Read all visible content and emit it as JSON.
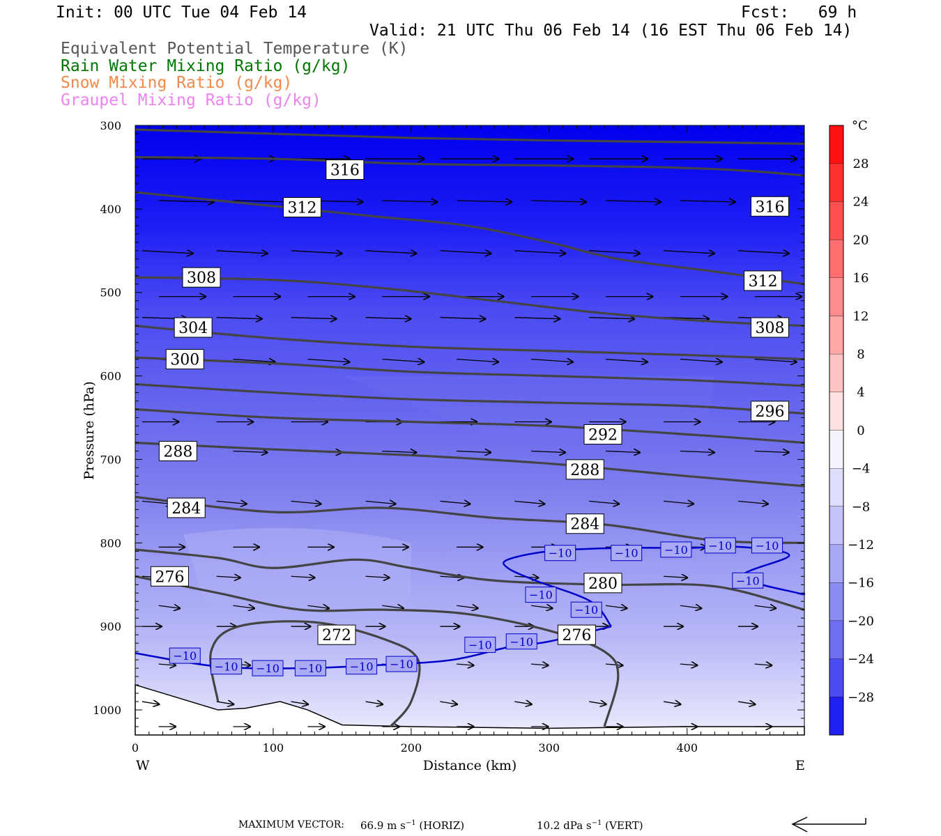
{
  "header": {
    "init": "Init: 00 UTC Tue 04 Feb 14",
    "fcst": "Fcst:   69 h",
    "valid": "Valid: 21 UTC Thu 06 Feb 14 (16 EST Thu 06 Feb 14)",
    "fields": [
      {
        "label": "Equivalent Potential Temperature (K)",
        "color": "#555555"
      },
      {
        "label": "Rain Water Mixing Ratio (g/kg)",
        "color": "#007700"
      },
      {
        "label": "Snow Mixing Ratio (g/kg)",
        "color": "#f08a4b"
      },
      {
        "label": "Graupel Mixing Ratio (g/kg)",
        "color": "#ee82ee"
      }
    ]
  },
  "colorbar": {
    "unit": "°C",
    "ticks": [
      "28",
      "24",
      "20",
      "16",
      "12",
      "8",
      "4",
      "0",
      "−4",
      "−8",
      "−12",
      "−16",
      "−20",
      "−24",
      "−28"
    ]
  },
  "footer": {
    "max_vector_label": "MAXIMUM VECTOR:",
    "horiz_value": "66.9 m s",
    "horiz_suffix": "(HORIZ)",
    "vert_value": "10.2 dPa s",
    "vert_suffix": "(VERT)",
    "exponent": "−1"
  },
  "chart_data": {
    "type": "cross-section contour",
    "xlabel": "Distance (km)",
    "ylabel": "Pressure (hPa)",
    "x_ticks": [
      0,
      100,
      200,
      300,
      400
    ],
    "y_ticks": [
      300,
      400,
      500,
      600,
      700,
      800,
      900,
      1000
    ],
    "xlim": [
      0,
      485
    ],
    "ylim": [
      1030,
      300
    ],
    "y_scale": "linear",
    "left_end_label": "W",
    "right_end_label": "E",
    "shading": "temperature (°C), blue shades from −30 aloft to about −4 near surface",
    "theta_e_contours": [
      {
        "label": "316",
        "points": [
          [
            0,
            305
          ],
          [
            100,
            310
          ],
          [
            200,
            315
          ],
          [
            300,
            318
          ],
          [
            400,
            320
          ],
          [
            485,
            322
          ]
        ],
        "labels_at": [
          [
            152,
            353
          ],
          [
            460,
            397
          ]
        ]
      },
      {
        "label": "316",
        "points": [
          [
            0,
            338
          ],
          [
            100,
            340
          ],
          [
            200,
            346
          ],
          [
            300,
            348
          ],
          [
            380,
            350
          ],
          [
            440,
            354
          ],
          [
            485,
            360
          ]
        ],
        "labels_at": []
      },
      {
        "label": "312",
        "points": [
          [
            0,
            380
          ],
          [
            60,
            390
          ],
          [
            120,
            400
          ],
          [
            180,
            410
          ],
          [
            240,
            420
          ],
          [
            300,
            440
          ],
          [
            350,
            460
          ],
          [
            420,
            475
          ],
          [
            485,
            490
          ]
        ],
        "labels_at": [
          [
            121,
            398
          ],
          [
            455,
            486
          ]
        ]
      },
      {
        "label": "308",
        "points": [
          [
            0,
            482
          ],
          [
            100,
            485
          ],
          [
            180,
            495
          ],
          [
            260,
            510
          ],
          [
            340,
            525
          ],
          [
            420,
            535
          ],
          [
            485,
            540
          ]
        ],
        "labels_at": [
          [
            48,
            482
          ],
          [
            460,
            542
          ]
        ]
      },
      {
        "label": "304",
        "points": [
          [
            0,
            540
          ],
          [
            100,
            555
          ],
          [
            200,
            565
          ],
          [
            300,
            570
          ],
          [
            400,
            575
          ],
          [
            485,
            580
          ]
        ],
        "labels_at": [
          [
            42,
            542
          ]
        ]
      },
      {
        "label": "300",
        "points": [
          [
            0,
            578
          ],
          [
            100,
            585
          ],
          [
            200,
            595
          ],
          [
            300,
            600
          ],
          [
            400,
            605
          ],
          [
            485,
            612
          ]
        ],
        "labels_at": [
          [
            36,
            580
          ]
        ]
      },
      {
        "label": "296",
        "points": [
          [
            0,
            610
          ],
          [
            100,
            620
          ],
          [
            200,
            628
          ],
          [
            300,
            632
          ],
          [
            400,
            636
          ],
          [
            485,
            645
          ]
        ],
        "labels_at": [
          [
            460,
            642
          ]
        ]
      },
      {
        "label": "292",
        "points": [
          [
            0,
            640
          ],
          [
            100,
            650
          ],
          [
            200,
            655
          ],
          [
            300,
            660
          ],
          [
            400,
            670
          ],
          [
            485,
            680
          ]
        ],
        "labels_at": [
          [
            339,
            670
          ]
        ]
      },
      {
        "label": "288",
        "points": [
          [
            0,
            680
          ],
          [
            100,
            688
          ],
          [
            200,
            695
          ],
          [
            300,
            705
          ],
          [
            400,
            720
          ],
          [
            485,
            732
          ]
        ],
        "labels_at": [
          [
            31,
            690
          ],
          [
            326,
            712
          ]
        ]
      },
      {
        "label": "284",
        "points": [
          [
            0,
            745
          ],
          [
            100,
            763
          ],
          [
            180,
            758
          ],
          [
            260,
            770
          ],
          [
            340,
            778
          ],
          [
            420,
            797
          ],
          [
            485,
            800
          ]
        ],
        "labels_at": [
          [
            37,
            758
          ],
          [
            326,
            777
          ]
        ]
      },
      {
        "label": "280",
        "points": [
          [
            0,
            808
          ],
          [
            60,
            818
          ],
          [
            100,
            830
          ],
          [
            160,
            820
          ],
          [
            200,
            830
          ],
          [
            260,
            845
          ],
          [
            340,
            850
          ],
          [
            420,
            852
          ],
          [
            485,
            880
          ]
        ],
        "labels_at": [
          [
            339,
            848
          ]
        ]
      },
      {
        "label": "276",
        "points": [
          [
            0,
            840
          ],
          [
            60,
            860
          ],
          [
            120,
            880
          ],
          [
            180,
            880
          ],
          [
            240,
            885
          ],
          [
            300,
            905
          ],
          [
            340,
            930
          ],
          [
            350,
            960
          ],
          [
            340,
            1020
          ]
        ],
        "labels_at": [
          [
            25,
            840
          ],
          [
            320,
            910
          ]
        ]
      },
      {
        "label": "272",
        "points": [
          [
            60,
            990
          ],
          [
            55,
            930
          ],
          [
            75,
            900
          ],
          [
            130,
            895
          ],
          [
            180,
            915
          ],
          [
            205,
            940
          ],
          [
            200,
            990
          ],
          [
            185,
            1020
          ]
        ],
        "labels_at": [
          [
            146,
            910
          ]
        ]
      }
    ],
    "temperature_contours": [
      {
        "label": "−10",
        "color": "#0000cc",
        "points": [
          [
            0,
            932
          ],
          [
            60,
            948
          ],
          [
            120,
            950
          ],
          [
            180,
            946
          ],
          [
            230,
            940
          ],
          [
            270,
            925
          ],
          [
            300,
            918
          ],
          [
            345,
            900
          ]
        ],
        "labels_at": [
          [
            36,
            935
          ],
          [
            66,
            948
          ],
          [
            96,
            950
          ],
          [
            127,
            950
          ],
          [
            164,
            948
          ],
          [
            193,
            945
          ],
          [
            250,
            922
          ],
          [
            280,
            918
          ]
        ]
      },
      {
        "label": "−10",
        "color": "#0000cc",
        "points": [
          [
            345,
            900
          ],
          [
            330,
            870
          ],
          [
            290,
            845
          ],
          [
            270,
            830
          ],
          [
            270,
            820
          ],
          [
            300,
            810
          ],
          [
            350,
            806
          ],
          [
            400,
            806
          ],
          [
            440,
            805
          ],
          [
            474,
            815
          ],
          [
            440,
            840
          ],
          [
            480,
            860
          ],
          [
            485,
            860
          ]
        ],
        "labels_at": [
          [
            308,
            812
          ],
          [
            356,
            812
          ],
          [
            392,
            808
          ],
          [
            424,
            803
          ],
          [
            458,
            803
          ],
          [
            444,
            845
          ],
          [
            294,
            862
          ],
          [
            327,
            880
          ]
        ]
      }
    ],
    "surface_terrain": [
      [
        0,
        970
      ],
      [
        30,
        985
      ],
      [
        60,
        1000
      ],
      [
        80,
        998
      ],
      [
        105,
        990
      ],
      [
        125,
        1000
      ],
      [
        150,
        1018
      ],
      [
        200,
        1020
      ],
      [
        300,
        1022
      ],
      [
        400,
        1020
      ],
      [
        485,
        1020
      ]
    ],
    "wind_vector_rows_hPa": [
      340,
      390,
      450,
      505,
      530,
      580,
      655,
      690,
      750,
      805,
      840,
      875,
      900,
      945,
      990,
      1020
    ],
    "max_vector_horiz": "66.9 m s-1",
    "max_vector_vert": "10.2 dPa s-1"
  }
}
